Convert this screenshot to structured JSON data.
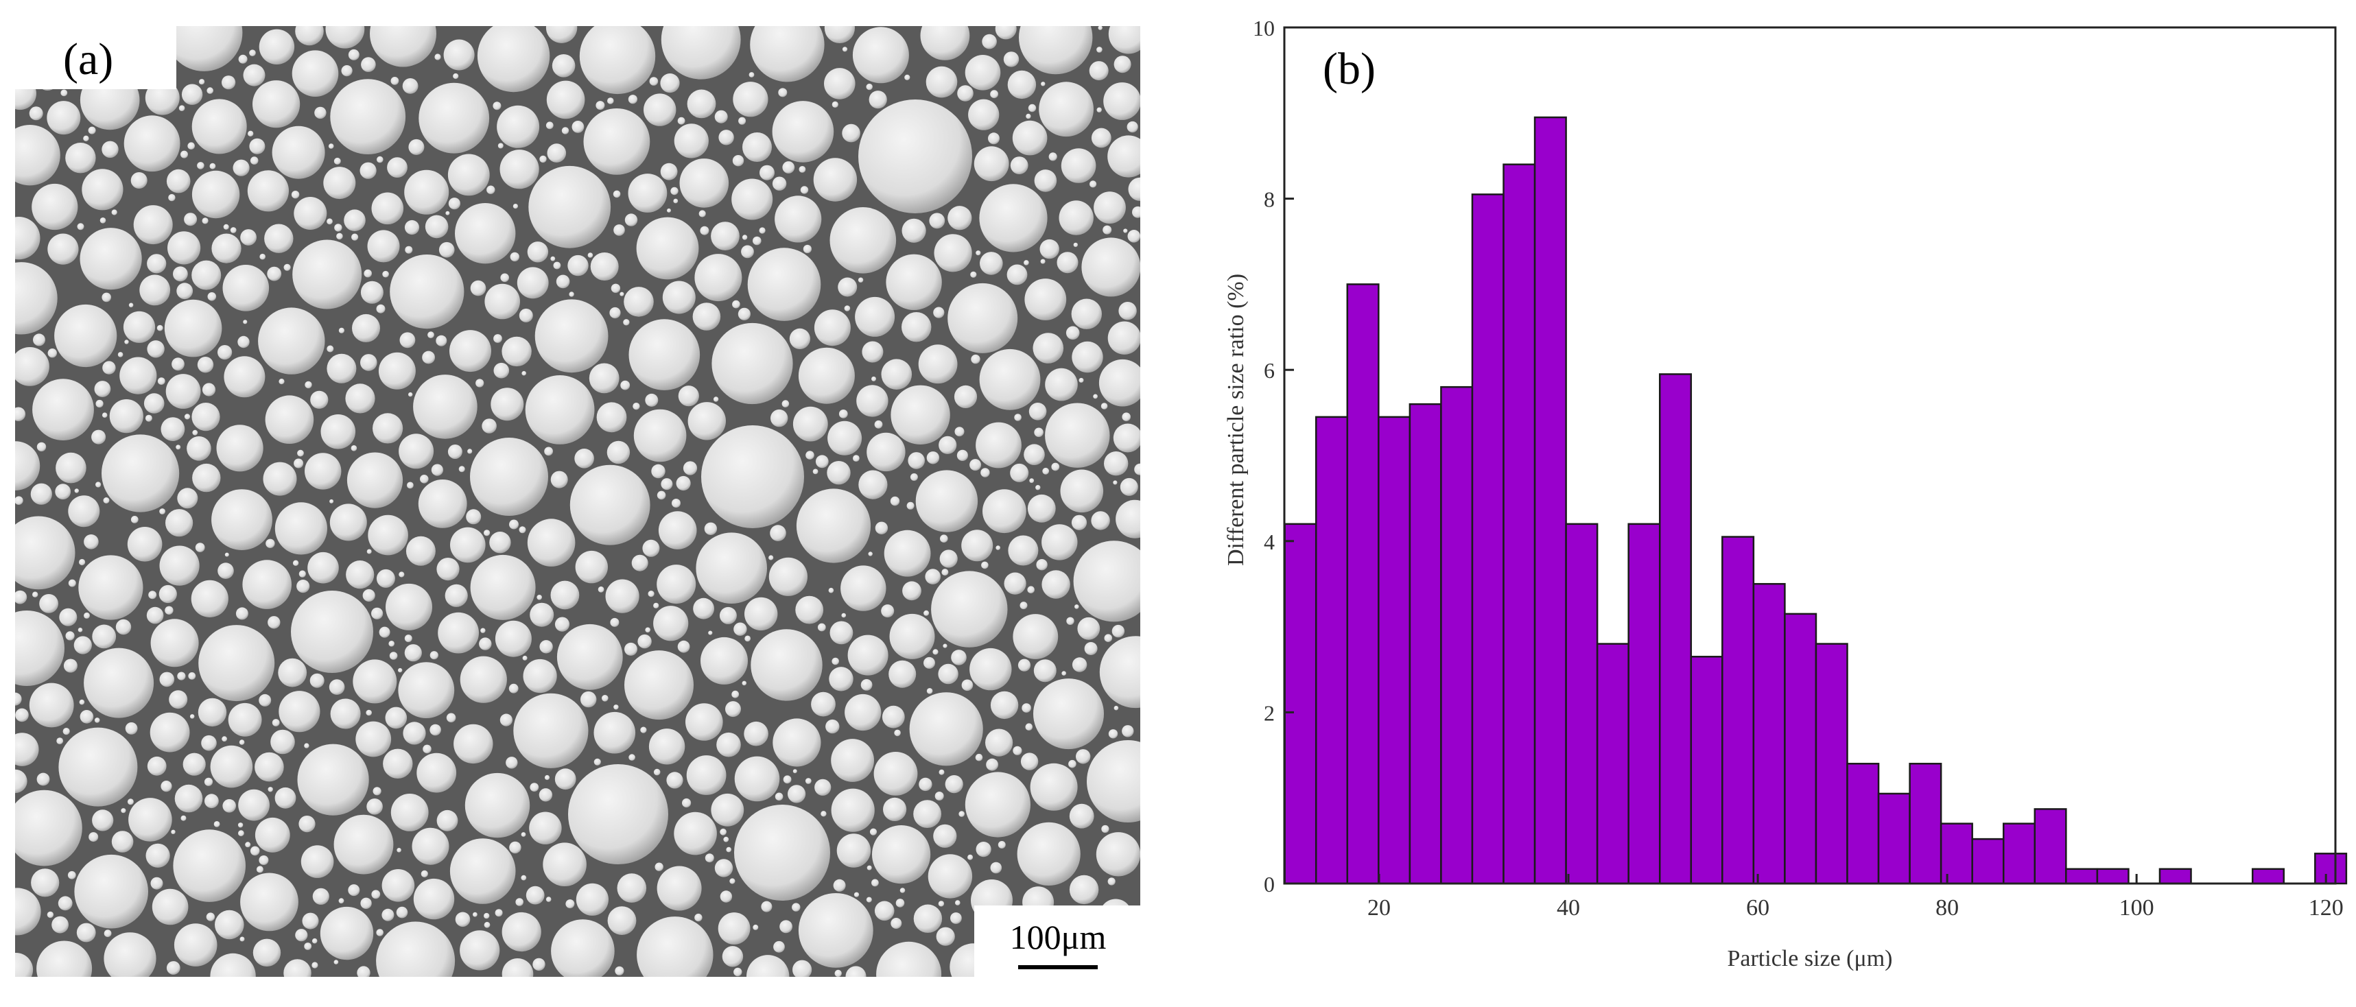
{
  "panel_a": {
    "label": "(a)",
    "scale_bar_text": "100μm"
  },
  "colors": {
    "bar_fill": "#9900cc",
    "bar_stroke": "#1a1a1a",
    "sem_background": "#5a5a5a"
  },
  "chart_data": {
    "type": "bar",
    "panel_label": "(b)",
    "xlabel": "Particle size (μm)",
    "ylabel": "Different particle size ratio (%)",
    "xlim": [
      10,
      121
    ],
    "ylim": [
      0,
      10
    ],
    "xticks": [
      20,
      40,
      60,
      80,
      100,
      120
    ],
    "yticks": [
      0,
      2,
      4,
      6,
      8,
      10
    ],
    "bin_width": 3.3,
    "bins": [
      {
        "x": 11.7,
        "value": 4.2
      },
      {
        "x": 15.0,
        "value": 5.45
      },
      {
        "x": 18.3,
        "value": 7.0
      },
      {
        "x": 21.6,
        "value": 5.45
      },
      {
        "x": 24.9,
        "value": 5.6
      },
      {
        "x": 28.2,
        "value": 5.8
      },
      {
        "x": 31.5,
        "value": 8.05
      },
      {
        "x": 34.8,
        "value": 8.4
      },
      {
        "x": 38.1,
        "value": 8.95
      },
      {
        "x": 41.4,
        "value": 4.2
      },
      {
        "x": 44.7,
        "value": 2.8
      },
      {
        "x": 48.0,
        "value": 4.2
      },
      {
        "x": 51.3,
        "value": 5.95
      },
      {
        "x": 54.6,
        "value": 2.65
      },
      {
        "x": 57.9,
        "value": 4.05
      },
      {
        "x": 61.2,
        "value": 3.5
      },
      {
        "x": 64.5,
        "value": 3.15
      },
      {
        "x": 67.8,
        "value": 2.8
      },
      {
        "x": 71.1,
        "value": 1.4
      },
      {
        "x": 74.4,
        "value": 1.05
      },
      {
        "x": 77.7,
        "value": 1.4
      },
      {
        "x": 81.0,
        "value": 0.7
      },
      {
        "x": 84.3,
        "value": 0.52
      },
      {
        "x": 87.6,
        "value": 0.7
      },
      {
        "x": 90.9,
        "value": 0.87
      },
      {
        "x": 94.2,
        "value": 0.17
      },
      {
        "x": 97.5,
        "value": 0.17
      },
      {
        "x": 104.1,
        "value": 0.17
      },
      {
        "x": 113.9,
        "value": 0.17
      },
      {
        "x": 120.5,
        "value": 0.35
      }
    ]
  }
}
